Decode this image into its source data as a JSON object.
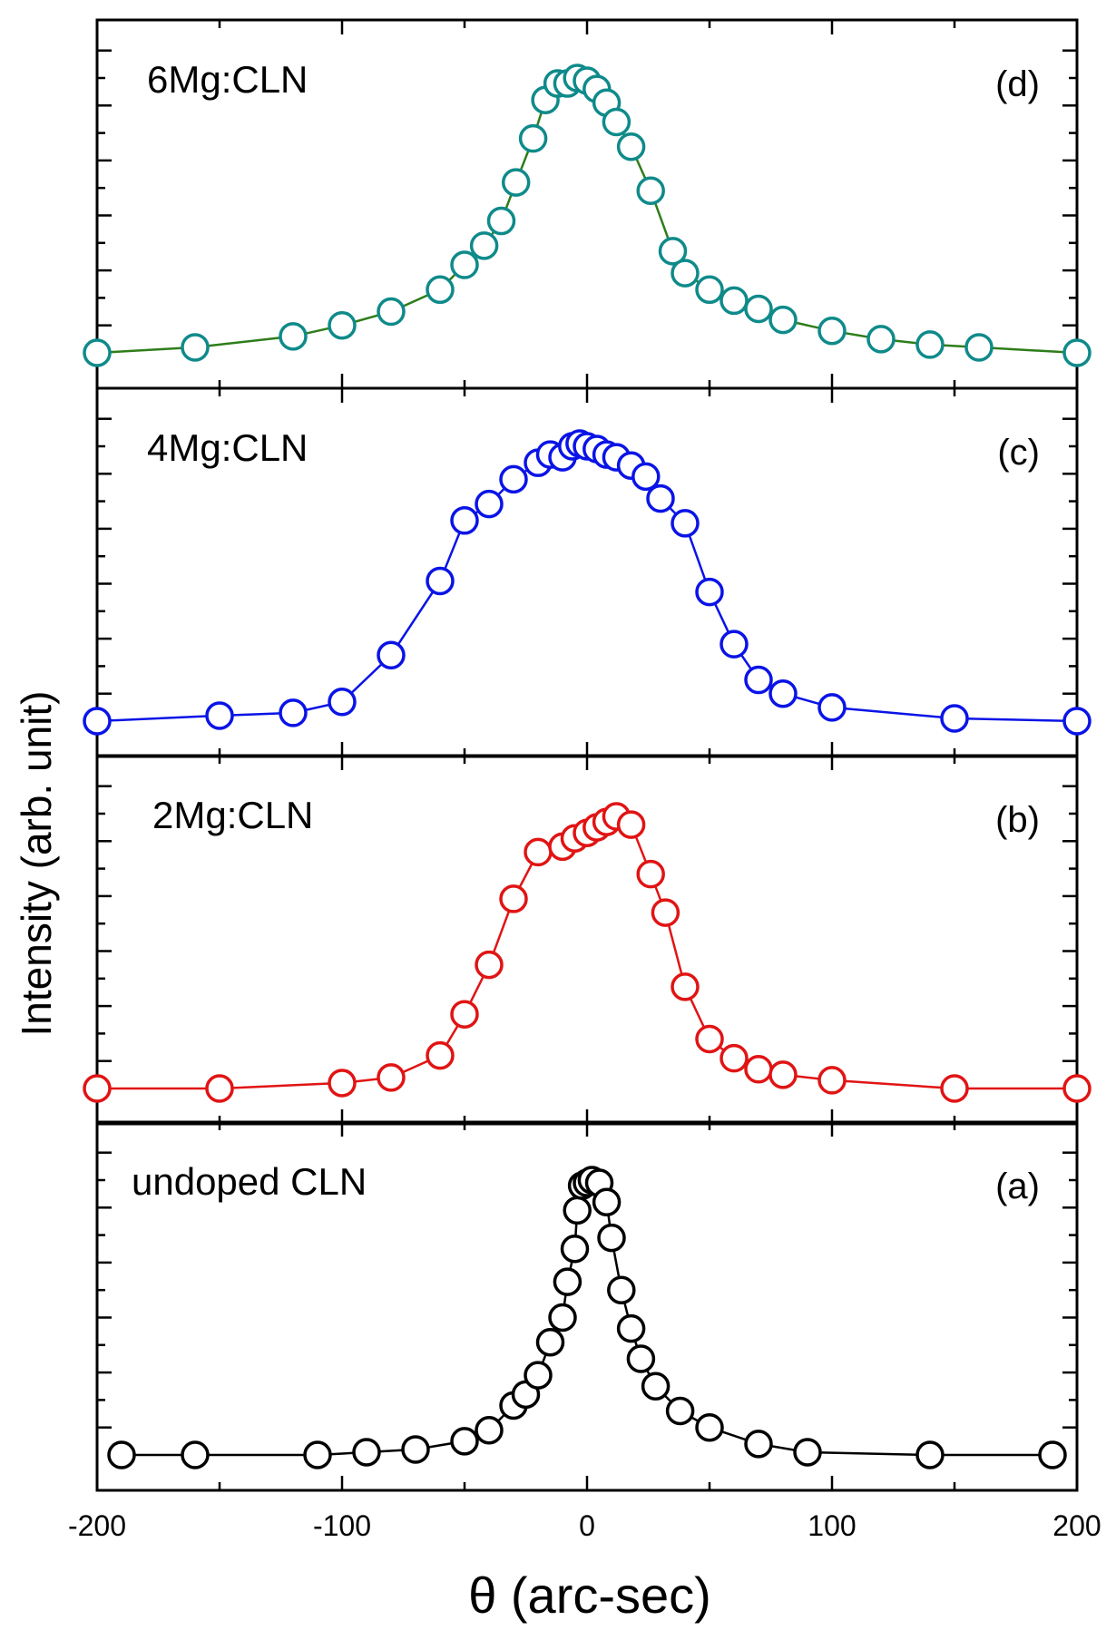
{
  "chart_data": {
    "type": "line",
    "xlabel": "θ (arc-sec)",
    "ylabel": "Intensity (arb. unit)",
    "xlim": [
      -200,
      200
    ],
    "xticks": [
      -200,
      -100,
      0,
      100,
      200
    ],
    "xtick_labels": [
      "-200",
      "-100",
      "0",
      "100",
      "200"
    ],
    "marker": "open-circle",
    "panels": [
      {
        "id": "d",
        "label": "6Mg:CLN",
        "tag": "(d)",
        "color": "#0f8a8a",
        "line_color": "#2e7d1a",
        "x": [
          -200,
          -160,
          -120,
          -100,
          -80,
          -60,
          -50,
          -42,
          -35,
          -29,
          -22,
          -17,
          -12,
          -8,
          -4,
          0,
          4,
          8,
          12,
          18,
          26,
          35,
          40,
          50,
          60,
          70,
          80,
          100,
          120,
          140,
          160,
          200
        ],
        "y": [
          0.0,
          0.02,
          0.06,
          0.1,
          0.15,
          0.23,
          0.32,
          0.39,
          0.48,
          0.62,
          0.78,
          0.92,
          0.98,
          0.98,
          1.0,
          0.99,
          0.96,
          0.91,
          0.84,
          0.75,
          0.59,
          0.37,
          0.29,
          0.23,
          0.19,
          0.16,
          0.12,
          0.08,
          0.05,
          0.03,
          0.02,
          0.0
        ]
      },
      {
        "id": "c",
        "label": "4Mg:CLN",
        "tag": "(c)",
        "color": "#0a14e6",
        "line_color": "#0a14e6",
        "x": [
          -200,
          -150,
          -120,
          -100,
          -80,
          -60,
          -50,
          -40,
          -30,
          -20,
          -15,
          -10,
          -6,
          -3,
          0,
          4,
          8,
          12,
          18,
          24,
          30,
          40,
          50,
          60,
          70,
          80,
          100,
          150,
          200
        ],
        "y": [
          0.0,
          0.02,
          0.03,
          0.07,
          0.24,
          0.51,
          0.73,
          0.79,
          0.88,
          0.94,
          0.97,
          0.96,
          1.0,
          1.01,
          1.0,
          0.99,
          0.97,
          0.96,
          0.93,
          0.89,
          0.81,
          0.72,
          0.47,
          0.28,
          0.15,
          0.1,
          0.05,
          0.01,
          0.0
        ]
      },
      {
        "id": "b",
        "label": "2Mg:CLN",
        "tag": "(b)",
        "color": "#e11414",
        "line_color": "#e11414",
        "x": [
          -200,
          -150,
          -100,
          -80,
          -60,
          -50,
          -40,
          -30,
          -20,
          -10,
          -5,
          0,
          4,
          8,
          12,
          18,
          26,
          32,
          40,
          50,
          60,
          70,
          80,
          100,
          150,
          200
        ],
        "y": [
          0.0,
          0.0,
          0.02,
          0.04,
          0.12,
          0.27,
          0.45,
          0.69,
          0.86,
          0.88,
          0.91,
          0.93,
          0.95,
          0.97,
          0.99,
          0.96,
          0.78,
          0.64,
          0.37,
          0.18,
          0.11,
          0.07,
          0.05,
          0.03,
          0.0,
          0.0
        ]
      },
      {
        "id": "a",
        "label": "undoped CLN",
        "tag": "(a)",
        "color": "#000000",
        "line_color": "#000000",
        "x": [
          -190,
          -160,
          -110,
          -90,
          -70,
          -50,
          -40,
          -30,
          -25,
          -20,
          -15,
          -10,
          -8,
          -5,
          -4,
          -2,
          0,
          2,
          5,
          8,
          10,
          14,
          18,
          22,
          28,
          38,
          50,
          70,
          90,
          140,
          190
        ],
        "y": [
          0.0,
          0.0,
          0.0,
          0.01,
          0.02,
          0.05,
          0.09,
          0.18,
          0.22,
          0.29,
          0.41,
          0.5,
          0.63,
          0.75,
          0.89,
          0.98,
          0.99,
          1.0,
          0.99,
          0.92,
          0.79,
          0.6,
          0.46,
          0.35,
          0.25,
          0.16,
          0.1,
          0.04,
          0.01,
          0.0,
          0.0
        ]
      }
    ]
  }
}
